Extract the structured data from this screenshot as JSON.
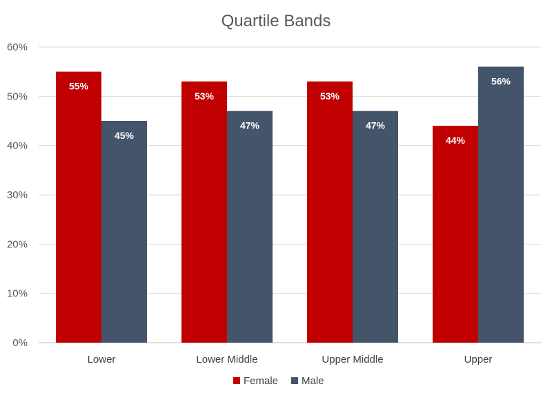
{
  "chart_data": {
    "type": "bar",
    "title": "Quartile Bands",
    "categories": [
      "Lower",
      "Lower Middle",
      "Upper Middle",
      "Upper"
    ],
    "series": [
      {
        "name": "Female",
        "values": [
          55,
          53,
          53,
          44
        ],
        "labels": [
          "55%",
          "53%",
          "53%",
          "44%"
        ],
        "color": "#C00000"
      },
      {
        "name": "Male",
        "values": [
          45,
          47,
          47,
          56
        ],
        "labels": [
          "45%",
          "47%",
          "47%",
          "56%"
        ],
        "color": "#44546A"
      }
    ],
    "yticks": [
      "0%",
      "10%",
      "20%",
      "30%",
      "40%",
      "50%",
      "60%"
    ],
    "ylim": [
      0,
      60
    ],
    "grid": true,
    "legend_position": "bottom"
  }
}
